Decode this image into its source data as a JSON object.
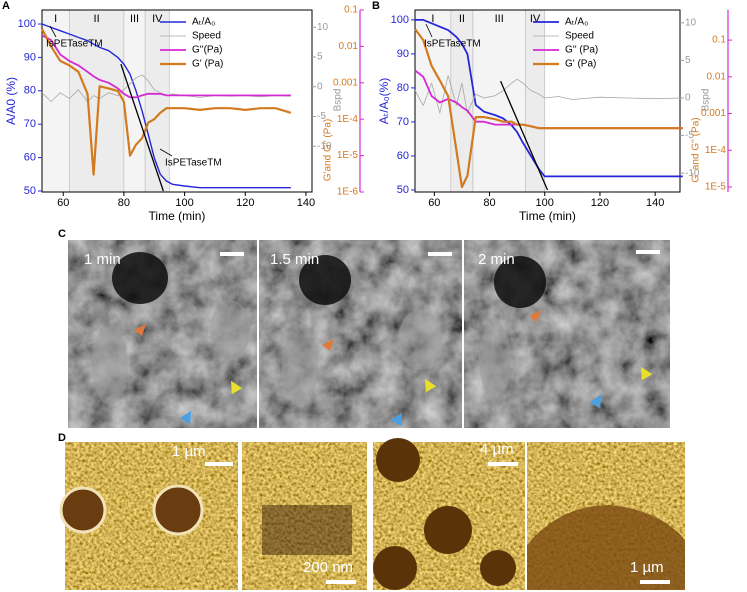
{
  "panel_labels": [
    "A",
    "B",
    "C",
    "D"
  ],
  "chart_data": [
    {
      "type": "line",
      "xlabel": "Time (min)",
      "ylabel": "A/A0 (%)",
      "y2label": "Bspd",
      "y3label": "G'and G'' (Pa)",
      "xlim": [
        53,
        142
      ],
      "xticks": [
        60,
        80,
        100,
        120,
        140
      ],
      "ylim": [
        49.7,
        104.2
      ],
      "yticks": [
        50,
        60,
        70,
        80,
        90,
        100
      ],
      "y2lim": [
        -17.7,
        12.9
      ],
      "y2ticks": [
        -10,
        -5,
        0,
        5,
        10
      ],
      "y3lim": [
        1e-06,
        0.1
      ],
      "y3log": true,
      "y3ticks": [
        0.1,
        0.01,
        0.001,
        {
          "value": 0.0001,
          "label": "1E-4"
        },
        {
          "value": 1e-05,
          "label": "1E-5"
        },
        {
          "value": 1e-06,
          "label": "1E-6"
        }
      ],
      "axis_colors": {
        "y": "#2626d9",
        "y2": "#9a9a9a",
        "y3": "#d27a1e"
      },
      "regions": [
        {
          "label": "I",
          "x": [
            53,
            62
          ]
        },
        {
          "label": "II",
          "x": [
            62,
            80
          ]
        },
        {
          "label": "III",
          "x": [
            80,
            87
          ]
        },
        {
          "label": "IV",
          "x": [
            87,
            95
          ]
        }
      ],
      "fit_line": {
        "x": [
          79,
          93
        ],
        "y": [
          88,
          50
        ]
      },
      "annotations": [
        "IsPETaseTM",
        "IsPETaseTM"
      ],
      "x": [
        53,
        56,
        59,
        62,
        65,
        68,
        70,
        72,
        75,
        78,
        80,
        82,
        84,
        86,
        88,
        90,
        92,
        94,
        96,
        100,
        105,
        110,
        115,
        120,
        125,
        130,
        135
      ],
      "series": [
        {
          "name": "Aₜ/A₀",
          "color": "#2626d9",
          "axis": "y",
          "width": 1.4,
          "values": [
            100,
            99,
            98,
            97,
            96,
            95,
            94,
            93,
            92,
            90,
            88,
            85,
            80,
            74,
            67,
            60,
            55,
            53,
            52,
            51.5,
            51,
            51,
            51,
            51,
            51,
            51,
            51
          ]
        },
        {
          "name": "Speed",
          "color": "#a8a8a8",
          "axis": "y2",
          "width": 0.8,
          "values": [
            -1,
            -2.5,
            -1,
            -2,
            -0.5,
            -2.5,
            -1.5,
            -2,
            -1,
            -1.5,
            -0.5,
            0.5,
            1.5,
            2,
            1,
            -0.5,
            -1,
            -1.5,
            -1.2,
            -1.5,
            -1.8,
            -1.5,
            -1.6,
            -1.5,
            -1.7,
            -1.5,
            -1.6
          ]
        },
        {
          "name": "G''(Pa)",
          "color": "#d42ad4",
          "axis": "y3",
          "width": 1.8,
          "values": [
            0.02,
            0.015,
            0.006,
            0.004,
            0.003,
            0.002,
            0.0015,
            0.0012,
            0.001,
            0.0007,
            0.0005,
            0.0004,
            0.0004,
            0.00045,
            0.0005,
            0.0005,
            0.0005,
            0.00045,
            0.00045,
            0.00045,
            0.00045,
            0.00045,
            0.00045,
            0.00045,
            0.00045,
            0.00045,
            0.00045
          ]
        },
        {
          "name": "G' (Pa)",
          "color": "#d27a1e",
          "axis": "y3",
          "width": 2.2,
          "values": [
            0.03,
            0.01,
            0.004,
            0.003,
            0.002,
            0.0005,
            3e-06,
            0.0008,
            0.0007,
            0.0006,
            0.0003,
            1e-05,
            2e-05,
            3e-05,
            8e-05,
            0.0001,
            0.00015,
            0.0002,
            0.0002,
            0.0002,
            0.00018,
            0.0002,
            0.0002,
            0.00018,
            0.0002,
            0.0002,
            0.00015
          ]
        }
      ]
    },
    {
      "type": "line",
      "xlabel": "Time (min)",
      "ylabel": "Aₜ/A₀(%)",
      "y2label": "Bspd",
      "y3label": "G' and G'' (Pa)",
      "xlim": [
        53,
        149
      ],
      "xticks": [
        60,
        80,
        100,
        120,
        140
      ],
      "ylim": [
        49.4,
        102.9
      ],
      "yticks": [
        50,
        60,
        70,
        80,
        90,
        100
      ],
      "y2lim": [
        -12.5,
        11.7
      ],
      "y2ticks": [
        -10,
        -5,
        0,
        5,
        10
      ],
      "y3lim": [
        7.3e-06,
        0.66
      ],
      "y3log": true,
      "y3ticks": [
        {
          "value": 1e-05,
          "label": "1E-5"
        },
        {
          "value": 0.0001,
          "label": "1E-4"
        },
        0.001,
        0.01,
        0.1
      ],
      "axis_colors": {
        "y": "#2626d9",
        "y2": "#9a9a9a",
        "y3": "#d27a1e"
      },
      "regions": [
        {
          "label": "I",
          "x": [
            53,
            66
          ]
        },
        {
          "label": "II",
          "x": [
            66,
            74
          ]
        },
        {
          "label": "III",
          "x": [
            74,
            93
          ]
        },
        {
          "label": "IV",
          "x": [
            93,
            100
          ]
        }
      ],
      "fit_line": {
        "x": [
          84,
          101
        ],
        "y": [
          82,
          50
        ]
      },
      "annotations": [
        "IsPETaseTM"
      ],
      "x": [
        53,
        56,
        59,
        62,
        65,
        68,
        70,
        72,
        75,
        78,
        82,
        85,
        88,
        90,
        92,
        95,
        98,
        100,
        105,
        110,
        120,
        130,
        140,
        150
      ],
      "series": [
        {
          "name": "Aₜ/A₀",
          "color": "#2626d9",
          "axis": "y",
          "width": 1.8,
          "values": [
            100,
            100,
            99,
            98,
            97,
            95,
            93,
            90,
            75,
            73,
            72,
            71,
            69,
            67,
            64,
            60,
            56,
            54,
            54,
            54,
            54,
            54,
            54,
            54
          ]
        },
        {
          "name": "Speed",
          "color": "#a8a8a8",
          "axis": "y2",
          "width": 0.8,
          "values": [
            1,
            -1,
            2,
            -2,
            3,
            -1,
            2,
            -2,
            0.5,
            0,
            0.3,
            1,
            2,
            2.5,
            2,
            1,
            0.5,
            0,
            0.2,
            -0.2,
            0.1,
            0,
            -0.1,
            0
          ]
        },
        {
          "name": "G'' (Pa)",
          "color": "#d42ad4",
          "axis": "y3",
          "width": 1.8,
          "values": [
            0.015,
            0.01,
            0.003,
            0.002,
            0.0025,
            0.002,
            0.0015,
            0.0012,
            0.0006,
            0.0006,
            0.0005,
            0.0005,
            0.0005,
            0.0005,
            0.0005,
            0.00045,
            0.0004,
            0.0004,
            0.0004,
            0.0004,
            0.0004,
            0.0004,
            0.0004,
            0.0004
          ]
        },
        {
          "name": "G' (Pa)",
          "color": "#d27a1e",
          "axis": "y3",
          "width": 2.2,
          "values": [
            0.2,
            0.1,
            0.02,
            0.008,
            0.003,
            0.0001,
            1e-05,
            2e-05,
            0.0008,
            0.0008,
            0.0007,
            0.0006,
            0.0006,
            0.0005,
            0.0005,
            0.00045,
            0.0004,
            0.0004,
            0.0004,
            0.0004,
            0.0004,
            0.0004,
            0.0004,
            0.0004
          ]
        }
      ]
    }
  ],
  "micrographs_c": {
    "times": [
      "1 min",
      "1.5 min",
      "2 min"
    ]
  },
  "micrographs_d": {
    "scale_bars": [
      "1 µm",
      "200 nm",
      "4 µm",
      "1 µm"
    ]
  }
}
